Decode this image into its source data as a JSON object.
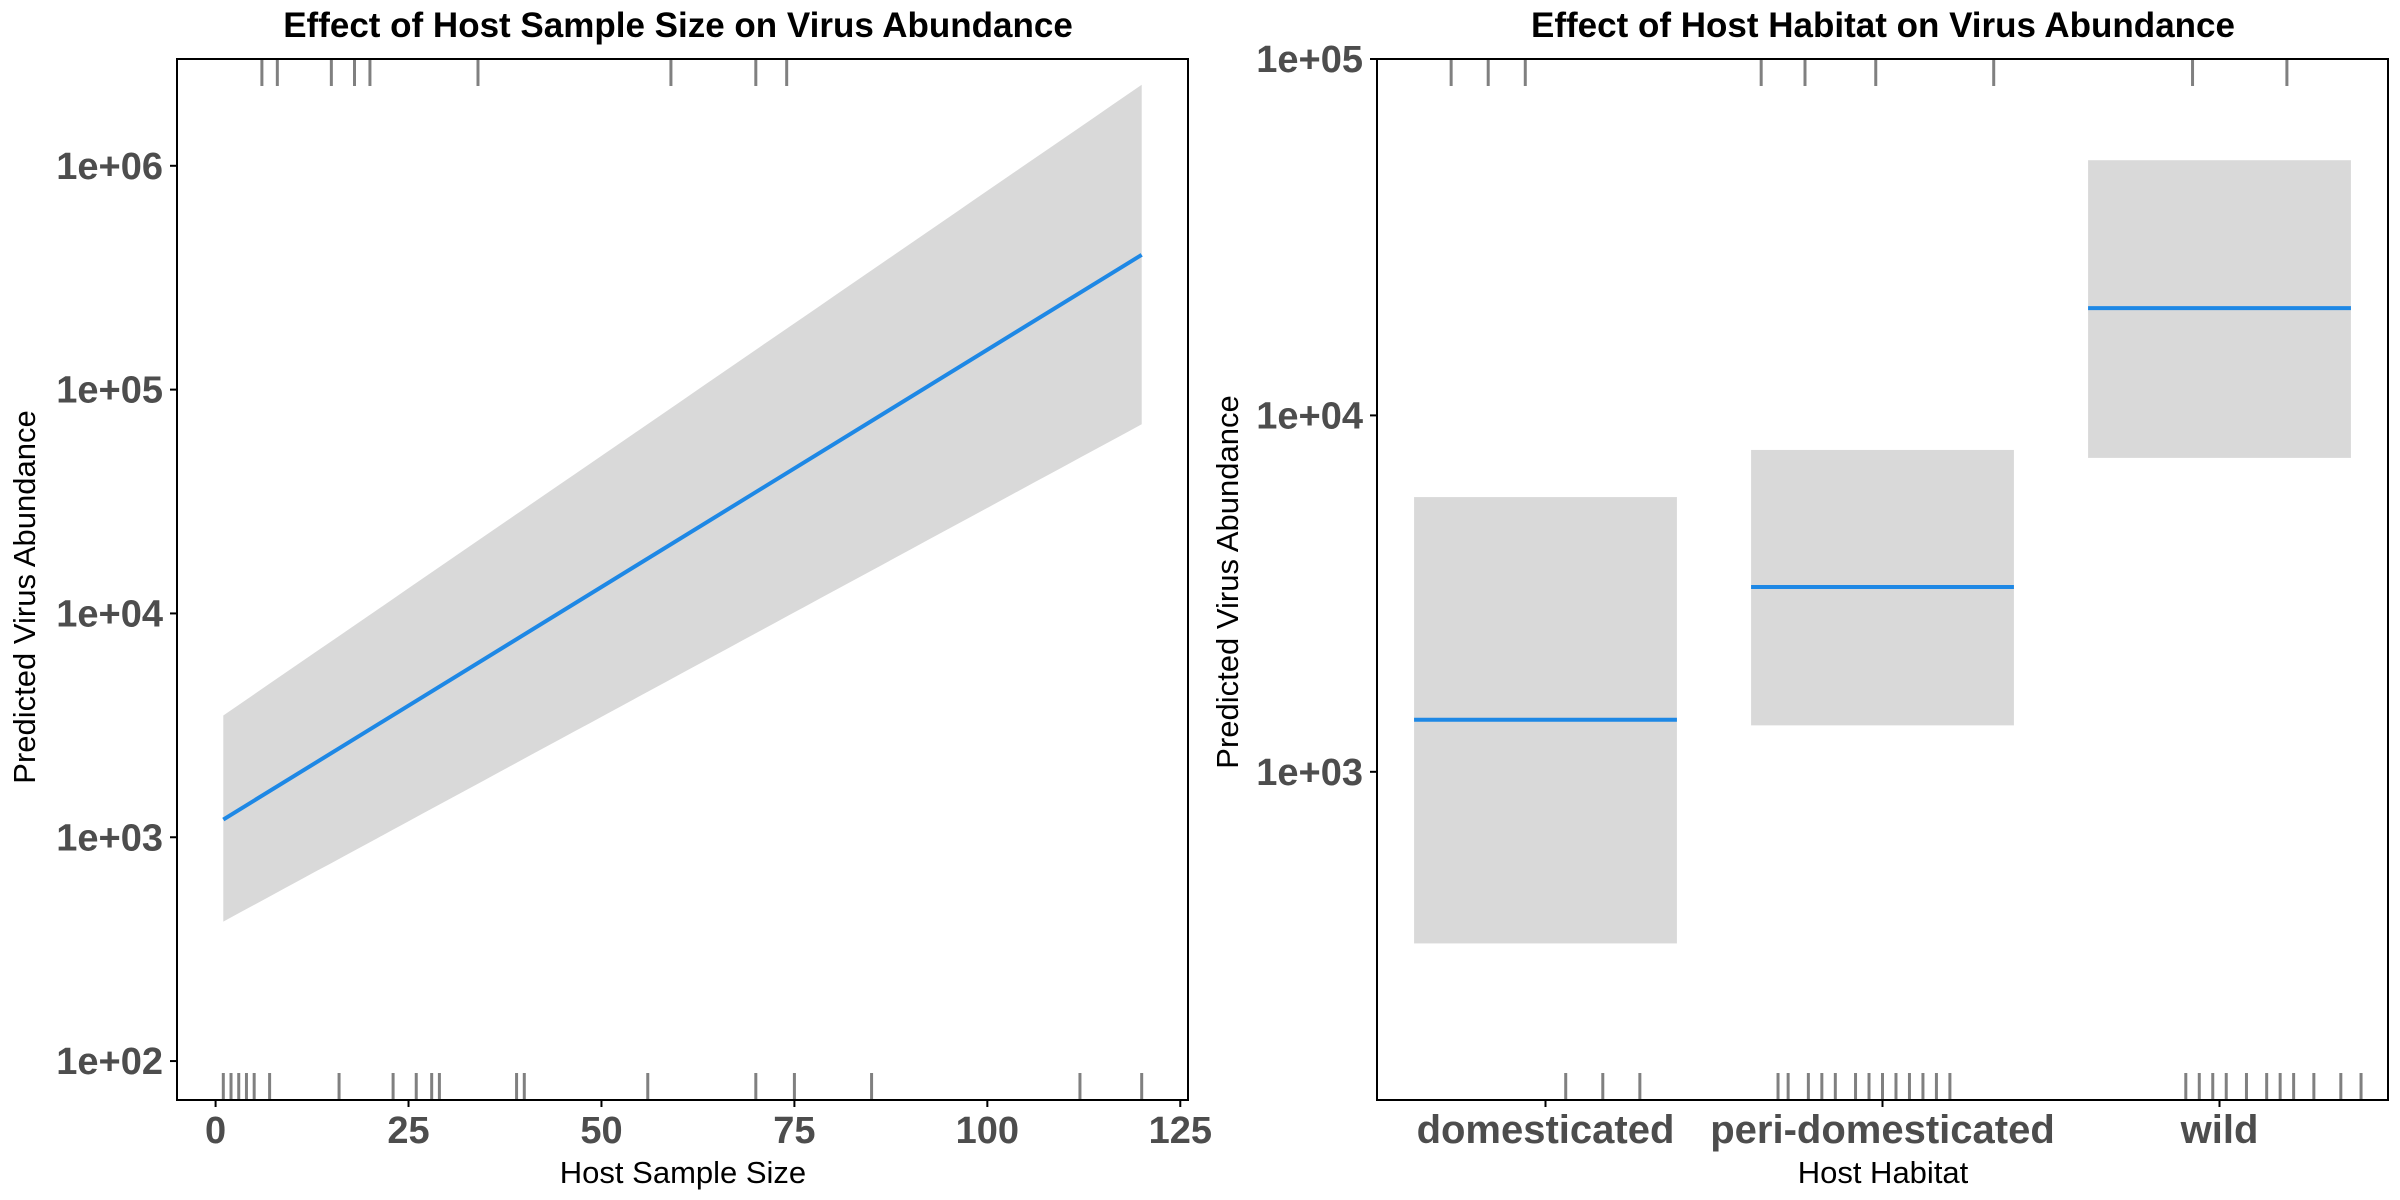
{
  "chart_data": [
    {
      "type": "line",
      "title": "Effect of Host Sample Size on Virus Abundance",
      "xlabel": "Host Sample Size",
      "ylabel": "Predicted Virus Abundance",
      "xlim": [
        -5,
        126
      ],
      "ylim": [
        67,
        3000000
      ],
      "yscale": "log",
      "x_ticks": [
        0,
        25,
        50,
        75,
        100,
        125
      ],
      "x_tick_labels": [
        "0",
        "25",
        "50",
        "75",
        "100",
        "125"
      ],
      "y_ticks": [
        100,
        1000,
        10000,
        100000,
        1000000
      ],
      "y_tick_labels": [
        "1e+02",
        "1e+03",
        "1e+04",
        "1e+05",
        "1e+06"
      ],
      "series": [
        {
          "x": [
            1,
            120
          ],
          "values": [
            1200,
            400000
          ],
          "lower": [
            420,
            70000
          ],
          "upper": [
            3500,
            2300000
          ],
          "color": "#1e88e5",
          "band_color": "#d9d9d9"
        }
      ],
      "rug_bottom": [
        1,
        2,
        3,
        4,
        5,
        7,
        16,
        23,
        26,
        28,
        29,
        39,
        40,
        56,
        70,
        75,
        85,
        112,
        120
      ],
      "rug_top": [
        6,
        8,
        15,
        18,
        20,
        34,
        59,
        70,
        74
      ],
      "grid": false,
      "legend": "none"
    },
    {
      "type": "bar",
      "title": "Effect of Host Habitat on Virus Abundance",
      "xlabel": "Host Habitat",
      "ylabel": "Predicted Virus Abundance",
      "categories": [
        "domesticated",
        "peri-domesticated",
        "wild"
      ],
      "yscale": "log",
      "ylim": [
        120,
        100000
      ],
      "y_ticks": [
        1000,
        10000,
        100000
      ],
      "y_tick_labels": [
        "1e+03",
        "1e+04",
        "1e+05"
      ],
      "series": [
        {
          "values": [
            1400,
            3300,
            20000
          ],
          "lower": [
            330,
            1350,
            7600
          ],
          "upper": [
            5900,
            8000,
            52000
          ],
          "color": "#1e88e5",
          "band_color": "#d9d9d9"
        }
      ],
      "rug_bottom": [
        0.06,
        0.17,
        0.28,
        0.69,
        0.72,
        0.78,
        0.82,
        0.86,
        0.92,
        0.96,
        1.0,
        1.04,
        1.08,
        1.12,
        1.16,
        1.2,
        1.9,
        1.94,
        1.98,
        2.02,
        2.08,
        2.14,
        2.18,
        2.22,
        2.28,
        2.36,
        2.42
      ],
      "rug_top": [
        -0.28,
        -0.17,
        -0.06,
        0.64,
        0.77,
        0.98,
        1.33,
        1.92,
        2.2
      ],
      "grid": false,
      "legend": "none"
    }
  ]
}
